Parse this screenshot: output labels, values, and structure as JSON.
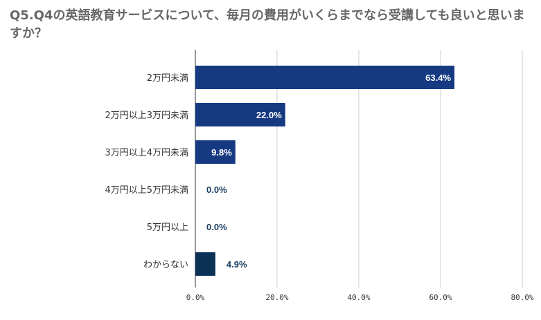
{
  "chart_data": {
    "type": "bar",
    "orientation": "horizontal",
    "title": "Q5.Q4の英語教育サービスについて、毎月の費用がいくらまでなら受講しても良いと思いますか？",
    "categories": [
      "2万円未満",
      "2万円以上3万円未満",
      "3万円以上4万円未満",
      "4万円以上5万円未満",
      "5万円以上",
      "わからない"
    ],
    "values": [
      63.4,
      22.0,
      9.8,
      0.0,
      0.0,
      4.9
    ],
    "data_labels": [
      "63.4%",
      "22.0%",
      "9.8%",
      "0.0%",
      "0.0%",
      "4.9%"
    ],
    "bar_colors": [
      "#163a82",
      "#163a82",
      "#163a82",
      "#163a82",
      "#163a82",
      "#0b3157"
    ],
    "xlim": [
      0,
      80
    ],
    "x_ticks": [
      0,
      20,
      40,
      60,
      80
    ],
    "x_tick_labels": [
      "0.0%",
      "20.0%",
      "40.0%",
      "60.0%",
      "80.0%"
    ],
    "grid": true,
    "legend": "none",
    "colors": {
      "title": "#666666",
      "axis_text": "#333333",
      "gridline": "#cccccc",
      "label_inside": "#ffffff",
      "label_outside": "#163a5e"
    }
  }
}
